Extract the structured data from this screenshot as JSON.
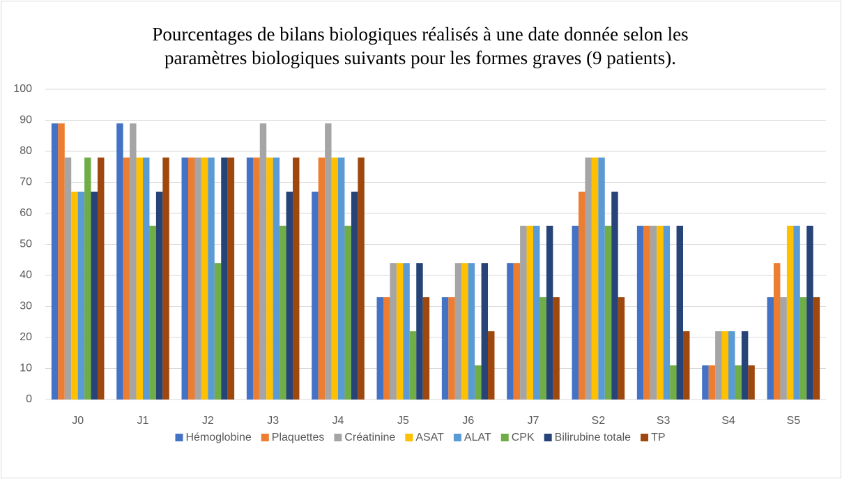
{
  "chart_data": {
    "type": "bar",
    "title": [
      "Pourcentages de bilans biologiques réalisés à une date donnée selon les",
      "paramètres biologiques suivants pour les formes graves (9 patients)."
    ],
    "categories": [
      "J0",
      "J1",
      "J2",
      "J3",
      "J4",
      "J5",
      "J6",
      "J7",
      "S2",
      "S3",
      "S4",
      "S5"
    ],
    "series": [
      {
        "name": "Hémoglobine",
        "color": "#4472c4",
        "values": [
          89,
          89,
          78,
          78,
          67,
          33,
          33,
          44,
          56,
          56,
          11,
          33
        ]
      },
      {
        "name": "Plaquettes",
        "color": "#ed7d31",
        "values": [
          89,
          78,
          78,
          78,
          78,
          33,
          33,
          44,
          67,
          56,
          11,
          44
        ]
      },
      {
        "name": "Créatinine",
        "color": "#a5a5a5",
        "values": [
          78,
          89,
          78,
          89,
          89,
          44,
          44,
          56,
          78,
          56,
          22,
          33
        ]
      },
      {
        "name": "ASAT",
        "color": "#ffc000",
        "values": [
          67,
          78,
          78,
          78,
          78,
          44,
          44,
          56,
          78,
          56,
          22,
          56
        ]
      },
      {
        "name": "ALAT",
        "color": "#5b9bd5",
        "values": [
          67,
          78,
          78,
          78,
          78,
          44,
          44,
          56,
          78,
          56,
          22,
          56
        ]
      },
      {
        "name": "CPK",
        "color": "#70ad47",
        "values": [
          78,
          56,
          44,
          56,
          56,
          22,
          11,
          33,
          56,
          11,
          11,
          33
        ]
      },
      {
        "name": "Bilirubine totale",
        "color": "#264478",
        "values": [
          67,
          67,
          78,
          67,
          67,
          44,
          44,
          56,
          67,
          56,
          22,
          56
        ]
      },
      {
        "name": "TP",
        "color": "#9e480e",
        "values": [
          78,
          78,
          78,
          78,
          78,
          33,
          22,
          33,
          33,
          22,
          11,
          33
        ]
      }
    ],
    "ylim": [
      0,
      100
    ],
    "yticks": [
      0,
      10,
      20,
      30,
      40,
      50,
      60,
      70,
      80,
      90,
      100
    ],
    "grid": true,
    "legend": "bottom"
  }
}
